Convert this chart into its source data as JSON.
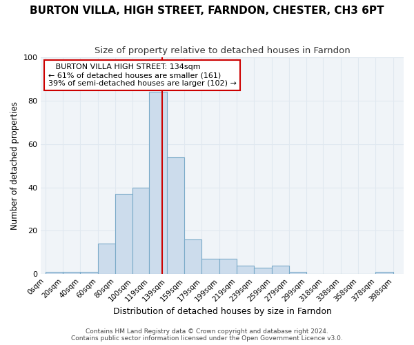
{
  "title": "BURTON VILLA, HIGH STREET, FARNDON, CHESTER, CH3 6PT",
  "subtitle": "Size of property relative to detached houses in Farndon",
  "xlabel": "Distribution of detached houses by size in Farndon",
  "ylabel": "Number of detached properties",
  "bin_labels": [
    "0sqm",
    "20sqm",
    "40sqm",
    "60sqm",
    "80sqm",
    "100sqm",
    "119sqm",
    "139sqm",
    "159sqm",
    "179sqm",
    "199sqm",
    "219sqm",
    "239sqm",
    "259sqm",
    "279sqm",
    "299sqm",
    "318sqm",
    "338sqm",
    "358sqm",
    "378sqm",
    "398sqm"
  ],
  "bin_edges": [
    0,
    20,
    40,
    60,
    80,
    100,
    119,
    139,
    159,
    179,
    199,
    219,
    239,
    259,
    279,
    299,
    318,
    338,
    358,
    378,
    398
  ],
  "counts": [
    1,
    1,
    1,
    14,
    37,
    40,
    84,
    54,
    16,
    7,
    7,
    4,
    3,
    4,
    1,
    0,
    0,
    0,
    0,
    1
  ],
  "bar_color": "#ccdcec",
  "bar_edge_color": "#7aaac8",
  "vline_x": 134,
  "vline_color": "#cc0000",
  "annotation_text": "   BURTON VILLA HIGH STREET: 134sqm\n← 61% of detached houses are smaller (161)\n39% of semi-detached houses are larger (102) →",
  "annotation_box_edge_color": "#cc0000",
  "annotation_box_face_color": "#ffffff",
  "background_color": "#ffffff",
  "plot_bg_color": "#f0f4f8",
  "grid_color": "#e0e8f0",
  "ylim": [
    0,
    100
  ],
  "yticks": [
    0,
    20,
    40,
    60,
    80,
    100
  ],
  "footer": "Contains HM Land Registry data © Crown copyright and database right 2024.\nContains public sector information licensed under the Open Government Licence v3.0.",
  "title_fontsize": 11,
  "subtitle_fontsize": 9.5
}
